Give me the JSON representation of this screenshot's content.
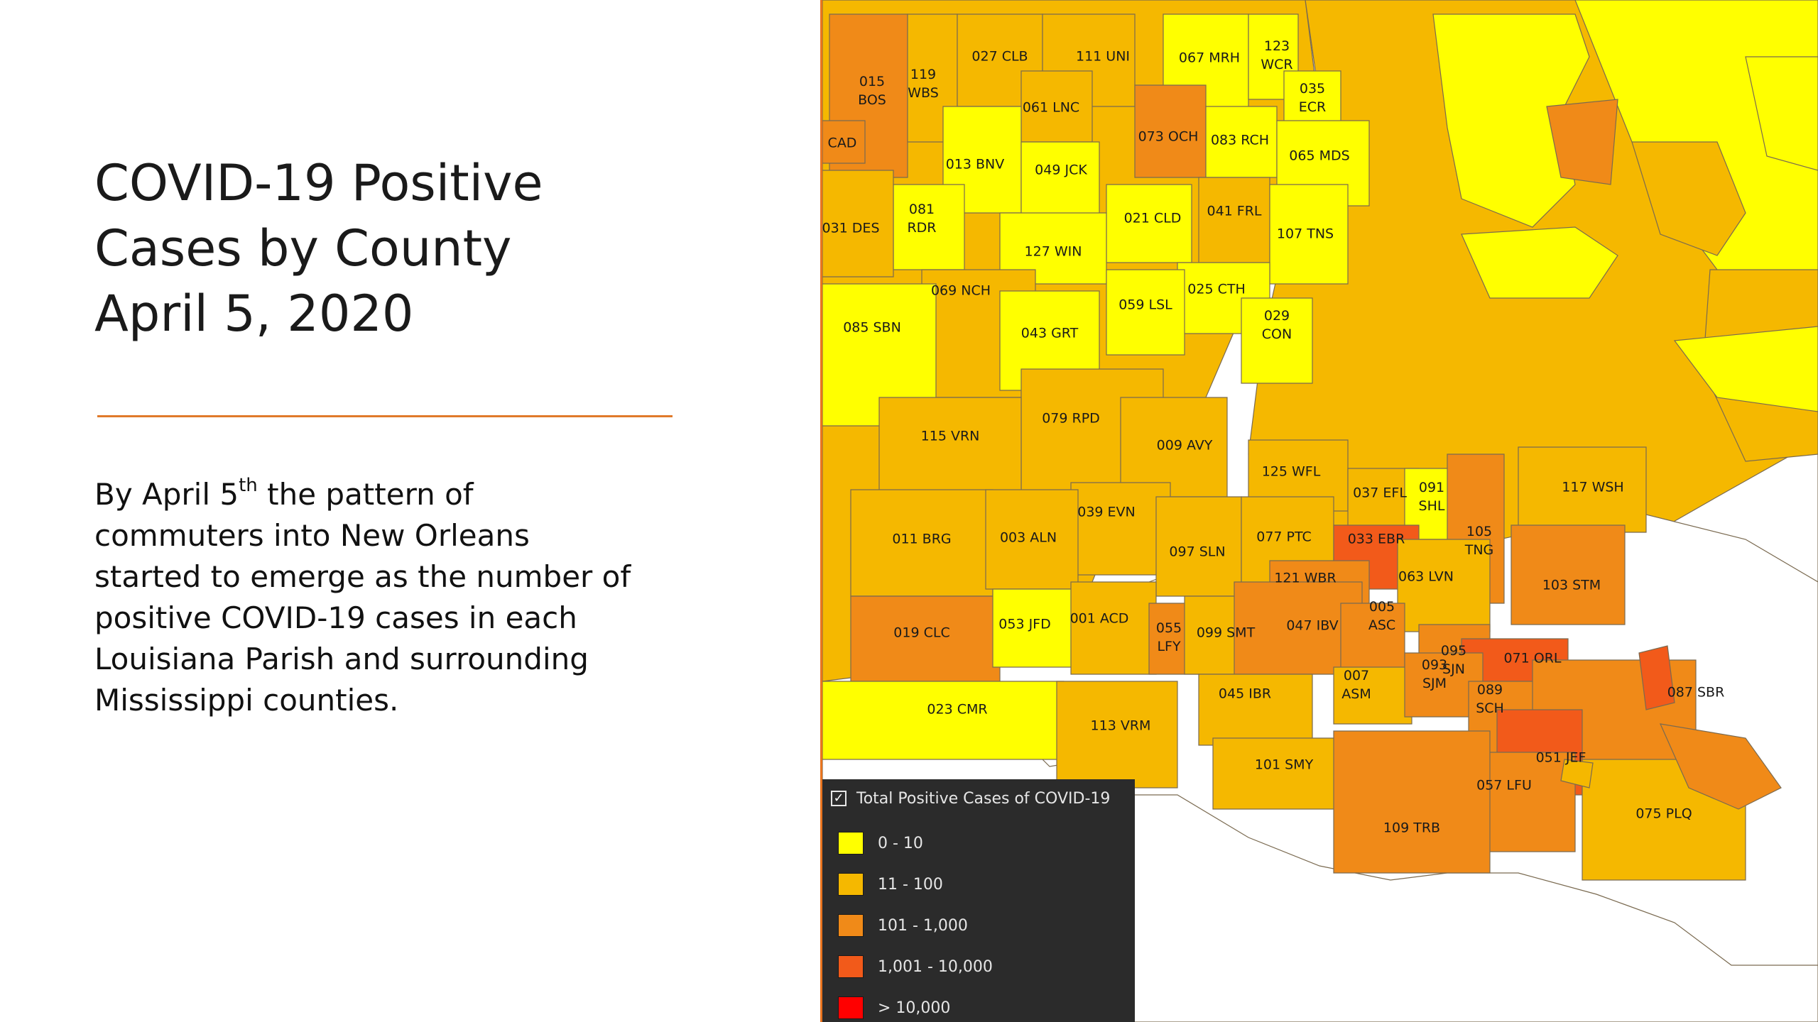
{
  "slide": {
    "title_lines": [
      "COVID-19 Positive",
      "Cases by County",
      "April 5, 2020"
    ],
    "body_lines": [
      {
        "pre": "By April 5",
        "sup": "th",
        "post": " the pattern of"
      },
      {
        "pre": "commuters into New Orleans",
        "sup": "",
        "post": ""
      },
      {
        "pre": "started to emerge as the number of",
        "sup": "",
        "post": ""
      },
      {
        "pre": "positive COVID-19 cases in each",
        "sup": "",
        "post": ""
      },
      {
        "pre": "Louisiana Parish and surrounding",
        "sup": "",
        "post": ""
      },
      {
        "pre": "Mississippi counties.",
        "sup": "",
        "post": ""
      }
    ]
  },
  "legend": {
    "title": "Total Positive Cases of COVID-19",
    "checked": true,
    "items": [
      {
        "label": "0 - 10",
        "color": "#ffff00"
      },
      {
        "label": "11 - 100",
        "color": "#f5b800"
      },
      {
        "label": "101 - 1,000",
        "color": "#f08a18"
      },
      {
        "label": "1,001 - 10,000",
        "color": "#f25a1a"
      },
      {
        "label": "> 10,000",
        "color": "#ff0000"
      }
    ]
  },
  "parishes": [
    {
      "code": "015",
      "abbr": "BOS",
      "class": 2
    },
    {
      "code": "119",
      "abbr": "WBS",
      "class": 1
    },
    {
      "code": "027",
      "abbr": "CLB",
      "class": 1
    },
    {
      "code": "111",
      "abbr": "UNI",
      "class": 1
    },
    {
      "code": "067",
      "abbr": "MRH",
      "class": 0
    },
    {
      "code": "123",
      "abbr": "WCR",
      "class": 0
    },
    {
      "code": "035",
      "abbr": "ECR",
      "class": 0
    },
    {
      "code": "061",
      "abbr": "LNC",
      "class": 1
    },
    {
      "code": "073",
      "abbr": "OCH",
      "class": 2
    },
    {
      "code": "083",
      "abbr": "RCH",
      "class": 0
    },
    {
      "code": "065",
      "abbr": "MDS",
      "class": 0
    },
    {
      "code": "",
      "abbr": "CAD",
      "class": 2
    },
    {
      "code": "013",
      "abbr": "BNV",
      "class": 0
    },
    {
      "code": "049",
      "abbr": "JCK",
      "class": 0
    },
    {
      "code": "081",
      "abbr": "RDR",
      "class": 0
    },
    {
      "code": "031",
      "abbr": "DES",
      "class": 1
    },
    {
      "code": "021",
      "abbr": "CLD",
      "class": 0
    },
    {
      "code": "041",
      "abbr": "FRL",
      "class": 1
    },
    {
      "code": "107",
      "abbr": "TNS",
      "class": 0
    },
    {
      "code": "127",
      "abbr": "WIN",
      "class": 0
    },
    {
      "code": "069",
      "abbr": "NCH",
      "class": 1
    },
    {
      "code": "025",
      "abbr": "CTH",
      "class": 0
    },
    {
      "code": "059",
      "abbr": "LSL",
      "class": 0
    },
    {
      "code": "029",
      "abbr": "CON",
      "class": 0
    },
    {
      "code": "085",
      "abbr": "SBN",
      "class": 0
    },
    {
      "code": "043",
      "abbr": "GRT",
      "class": 0
    },
    {
      "code": "079",
      "abbr": "RPD",
      "class": 1
    },
    {
      "code": "115",
      "abbr": "VRN",
      "class": 1
    },
    {
      "code": "009",
      "abbr": "AVY",
      "class": 1
    },
    {
      "code": "125",
      "abbr": "WFL",
      "class": 1
    },
    {
      "code": "037",
      "abbr": "EFL",
      "class": 1
    },
    {
      "code": "091",
      "abbr": "SHL",
      "class": 0
    },
    {
      "code": "117",
      "abbr": "WSH",
      "class": 1
    },
    {
      "code": "039",
      "abbr": "EVN",
      "class": 1
    },
    {
      "code": "011",
      "abbr": "BRG",
      "class": 1
    },
    {
      "code": "003",
      "abbr": "ALN",
      "class": 1
    },
    {
      "code": "097",
      "abbr": "SLN",
      "class": 1
    },
    {
      "code": "077",
      "abbr": "PTC",
      "class": 1
    },
    {
      "code": "033",
      "abbr": "EBR",
      "class": 3
    },
    {
      "code": "105",
      "abbr": "TNG",
      "class": 2
    },
    {
      "code": "121",
      "abbr": "WBR",
      "class": 2
    },
    {
      "code": "063",
      "abbr": "LVN",
      "class": 1
    },
    {
      "code": "103",
      "abbr": "STM",
      "class": 2
    },
    {
      "code": "019",
      "abbr": "CLC",
      "class": 2
    },
    {
      "code": "053",
      "abbr": "JFD",
      "class": 0
    },
    {
      "code": "001",
      "abbr": "ACD",
      "class": 1
    },
    {
      "code": "055",
      "abbr": "LFY",
      "class": 2
    },
    {
      "code": "099",
      "abbr": "SMT",
      "class": 1
    },
    {
      "code": "047",
      "abbr": "IBV",
      "class": 2
    },
    {
      "code": "005",
      "abbr": "ASC",
      "class": 2
    },
    {
      "code": "095",
      "abbr": "SJN",
      "class": 2
    },
    {
      "code": "071",
      "abbr": "ORL",
      "class": 3
    },
    {
      "code": "007",
      "abbr": "ASM",
      "class": 1
    },
    {
      "code": "093",
      "abbr": "SJM",
      "class": 2
    },
    {
      "code": "045",
      "abbr": "IBR",
      "class": 1
    },
    {
      "code": "089",
      "abbr": "SCH",
      "class": 2
    },
    {
      "code": "087",
      "abbr": "SBR",
      "class": 2
    },
    {
      "code": "023",
      "abbr": "CMR",
      "class": 0
    },
    {
      "code": "113",
      "abbr": "VRM",
      "class": 1
    },
    {
      "code": "101",
      "abbr": "SMY",
      "class": 1
    },
    {
      "code": "051",
      "abbr": "JEF",
      "class": 3
    },
    {
      "code": "057",
      "abbr": "LFU",
      "class": 2
    },
    {
      "code": "075",
      "abbr": "PLQ",
      "class": 1
    },
    {
      "code": "109",
      "abbr": "TRB",
      "class": 2
    }
  ]
}
